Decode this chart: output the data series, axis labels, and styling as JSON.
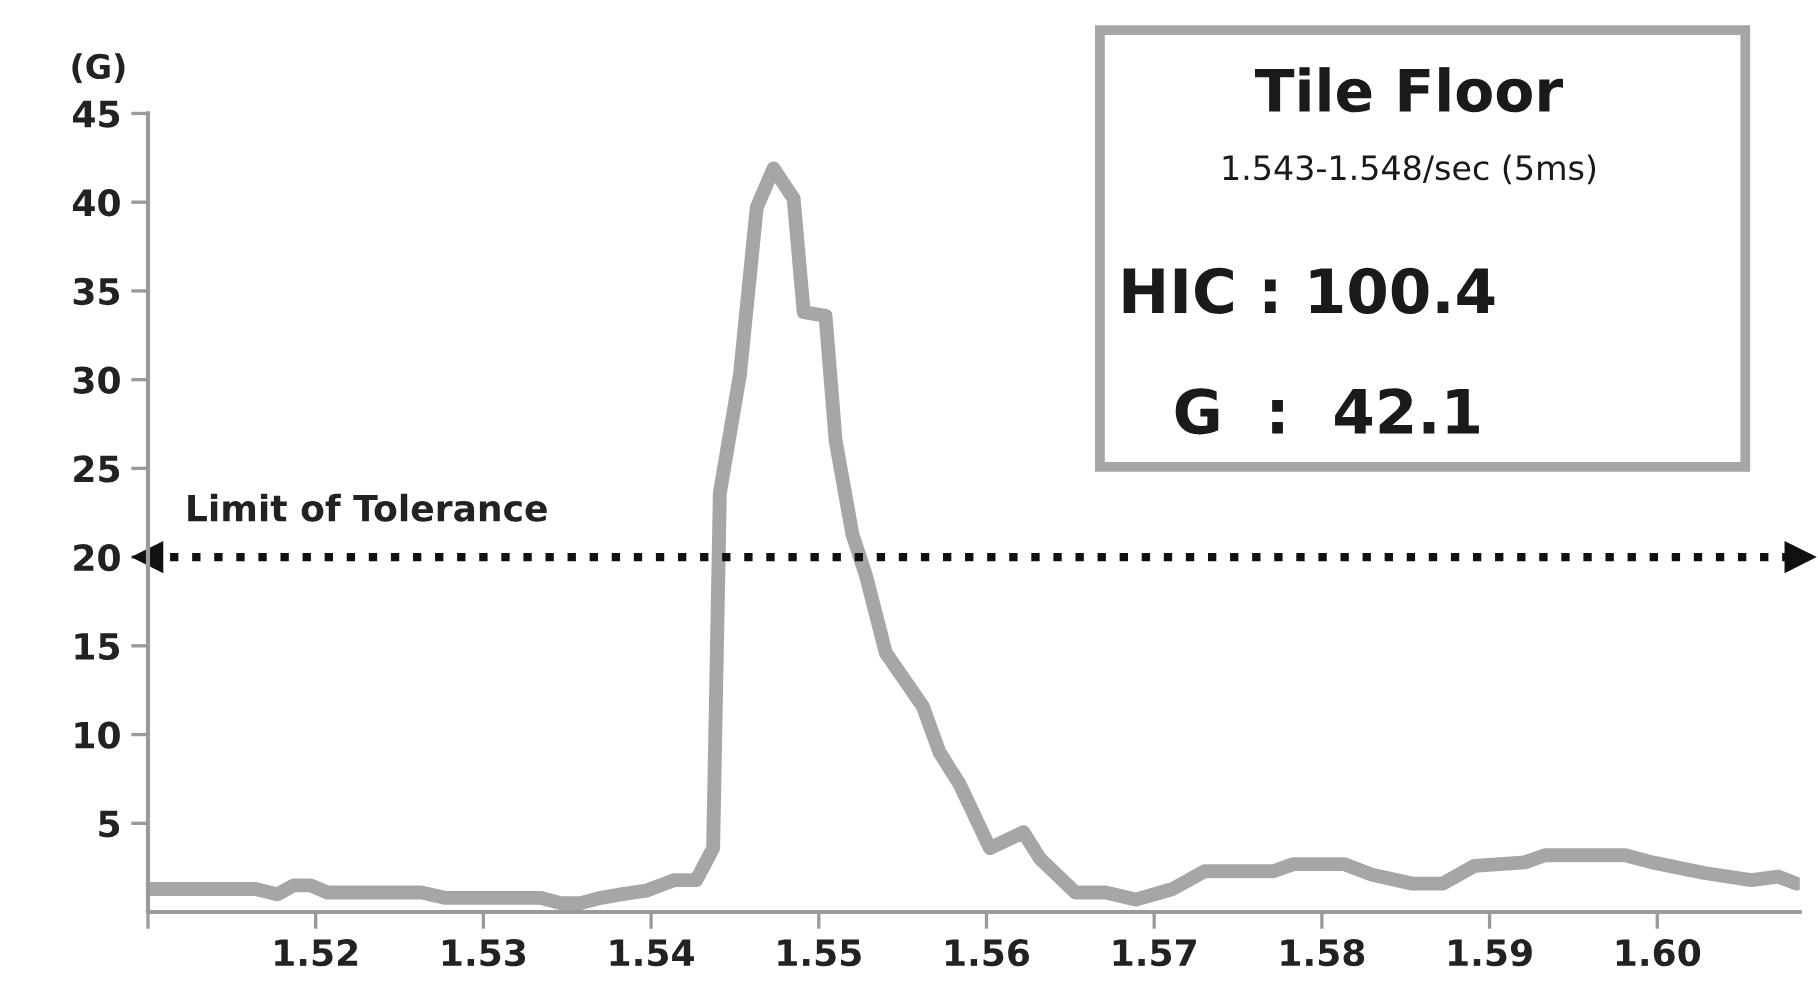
{
  "chart_data": {
    "type": "line",
    "ylabel": "(G)",
    "x": [
      1.5102,
      1.5164,
      1.5177,
      1.5187,
      1.5197,
      1.5207,
      1.5263,
      1.5277,
      1.5334,
      1.5346,
      1.5358,
      1.537,
      1.5382,
      1.5397,
      1.5414,
      1.5427,
      1.5437,
      1.5441,
      1.5453,
      1.5463,
      1.5473,
      1.5485,
      1.5491,
      1.5504,
      1.551,
      1.552,
      1.5528,
      1.554,
      1.5562,
      1.5572,
      1.5584,
      1.5602,
      1.5622,
      1.5632,
      1.5653,
      1.5671,
      1.5689,
      1.5711,
      1.573,
      1.5771,
      1.5783,
      1.5813,
      1.583,
      1.5854,
      1.5872,
      1.5891,
      1.5921,
      1.5933,
      1.5981,
      1.5997,
      1.6028,
      1.6056,
      1.6072,
      1.6083
    ],
    "series": [
      {
        "color": "#a6a6a8",
        "values": [
          1.3,
          1.3,
          1.0,
          1.5,
          1.5,
          1.1,
          1.1,
          0.8,
          0.8,
          0.5,
          0.5,
          0.8,
          1.0,
          1.2,
          1.8,
          1.8,
          3.6,
          23.6,
          30.3,
          39.7,
          41.9,
          40.2,
          33.8,
          33.6,
          26.6,
          21.3,
          19.0,
          14.6,
          11.6,
          9.0,
          7.2,
          3.6,
          4.5,
          3.0,
          1.1,
          1.1,
          0.7,
          1.3,
          2.3,
          2.3,
          2.7,
          2.7,
          2.1,
          1.6,
          1.6,
          2.6,
          2.8,
          3.2,
          3.2,
          2.8,
          2.2,
          1.8,
          2.0,
          1.6
        ]
      }
    ],
    "xlim": [
      1.51,
      1.6085
    ],
    "xticks": [
      {
        "value": 1.51,
        "label": null
      },
      1.52,
      1.53,
      1.54,
      1.55,
      1.56,
      1.57,
      1.58,
      1.59,
      {
        "value": 1.6,
        "label": "1.60"
      }
    ],
    "ylim": [
      0,
      45
    ],
    "yticks": [
      5,
      10,
      15,
      20,
      25,
      30,
      35,
      40,
      45
    ],
    "ref_lines": [
      {
        "axis": "y",
        "value": 20,
        "label": "Limit of Tolerance",
        "color": "#111111",
        "line_style": "dotted"
      }
    ],
    "annotations": [
      "Tile Floor",
      "1.543-1.548/sec (5ms)",
      "HIC : 100.4",
      "G  :  42.1"
    ],
    "grid": false,
    "legend": false,
    "marker": "none",
    "line_style": "solid"
  }
}
